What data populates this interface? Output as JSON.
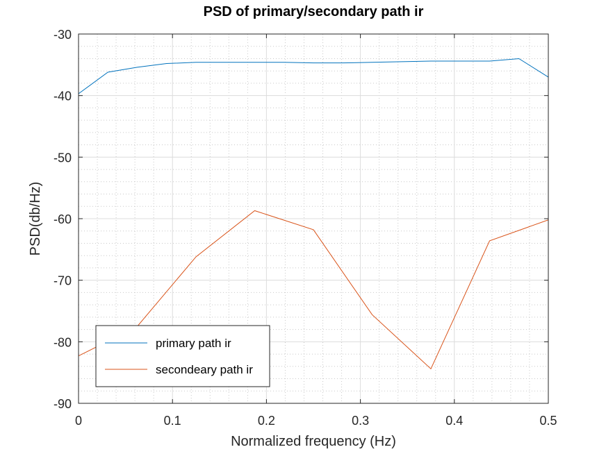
{
  "chart_data": {
    "type": "line",
    "title": "PSD of primary/secondary path ir",
    "xlabel": "Normalized frequency (Hz)",
    "ylabel": "PSD(db/Hz)",
    "xlim": [
      0,
      0.5
    ],
    "ylim": [
      -90,
      -30
    ],
    "xticks": [
      0,
      0.1,
      0.2,
      0.3,
      0.4,
      0.5
    ],
    "xtick_labels": [
      "0",
      "0.1",
      "0.2",
      "0.3",
      "0.4",
      "0.5"
    ],
    "yticks": [
      -90,
      -80,
      -70,
      -60,
      -50,
      -40,
      -30
    ],
    "ytick_labels": [
      "-90",
      "-80",
      "-70",
      "-60",
      "-50",
      "-40",
      "-30"
    ],
    "grid": true,
    "minor_grid": true,
    "legend_position": "bottom-left",
    "x": [
      0,
      0.03125,
      0.0625,
      0.09375,
      0.125,
      0.15625,
      0.1875,
      0.21875,
      0.25,
      0.28125,
      0.3125,
      0.34375,
      0.375,
      0.40625,
      0.4375,
      0.46875,
      0.5
    ],
    "series": [
      {
        "name": "primary path ir",
        "color": "#0072bd",
        "x": [
          0,
          0.03125,
          0.0625,
          0.09375,
          0.125,
          0.15625,
          0.1875,
          0.21875,
          0.25,
          0.28125,
          0.3125,
          0.34375,
          0.375,
          0.40625,
          0.4375,
          0.46875,
          0.5
        ],
        "values": [
          -39.7,
          -36.2,
          -35.4,
          -34.8,
          -34.6,
          -34.6,
          -34.6,
          -34.6,
          -34.7,
          -34.7,
          -34.6,
          -34.5,
          -34.4,
          -34.4,
          -34.4,
          -34.0,
          -37.0
        ]
      },
      {
        "name": "secondeary path ir",
        "color": "#d95319",
        "x": [
          0,
          0.0625,
          0.125,
          0.1875,
          0.25,
          0.3125,
          0.375,
          0.4375,
          0.5
        ],
        "values": [
          -82.3,
          -77.5,
          -66.2,
          -58.7,
          -61.8,
          -75.6,
          -84.4,
          -63.6,
          -60.2
        ]
      }
    ]
  }
}
